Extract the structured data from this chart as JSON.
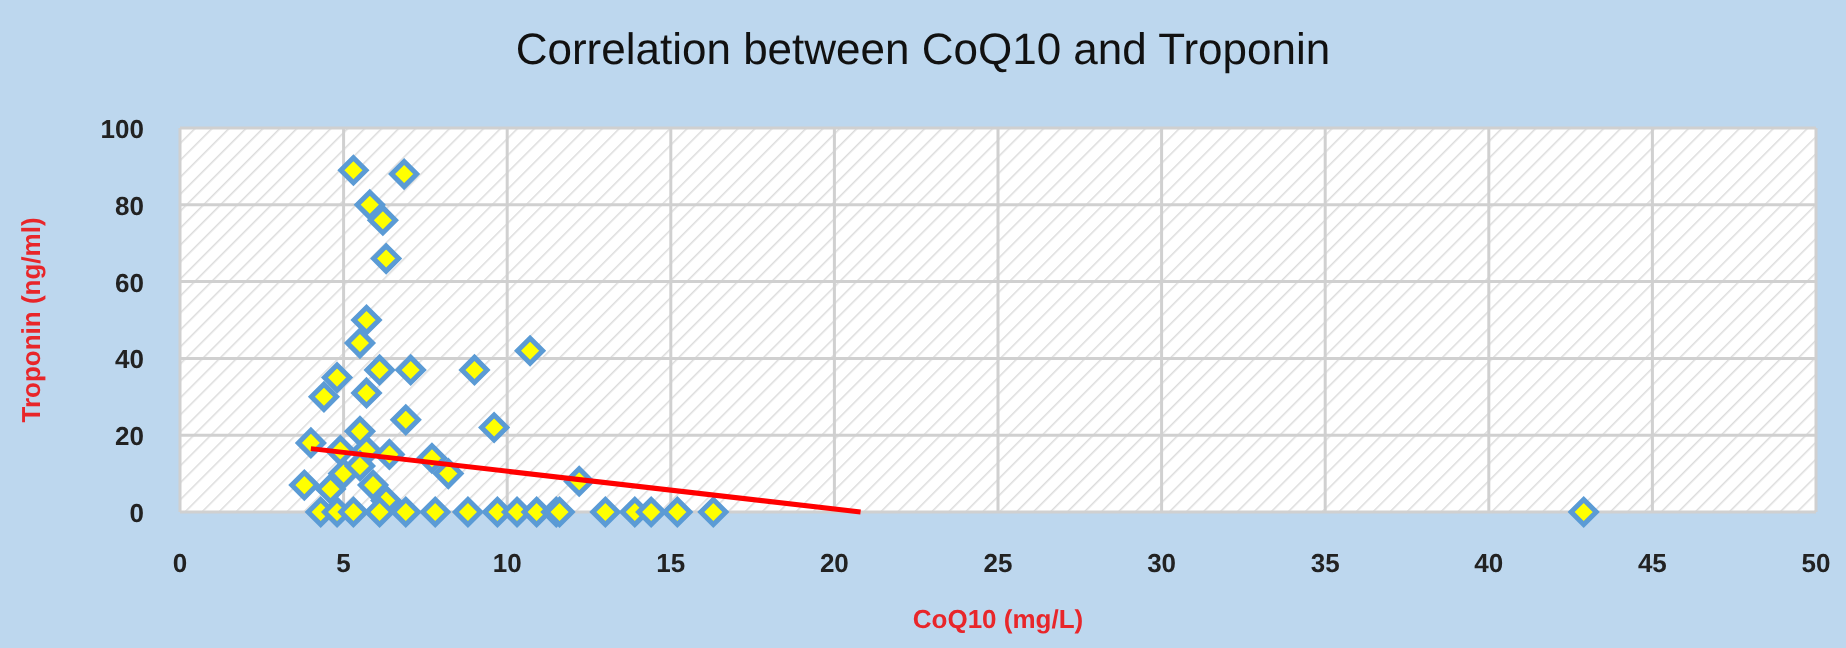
{
  "chart_data": {
    "type": "scatter",
    "title": "Correlation between CoQ10 and Troponin",
    "xlabel": "CoQ10 (mg/L)",
    "ylabel": "Troponin (ng/ml)",
    "xlim": [
      0,
      50
    ],
    "xticks": [
      0,
      5,
      10,
      15,
      20,
      25,
      30,
      35,
      40,
      45,
      50
    ],
    "ylim": [
      0,
      100
    ],
    "yticks": [
      0,
      20,
      40,
      60,
      80,
      100
    ],
    "grid": true,
    "series": [
      {
        "marker": "diamond",
        "color": "#ffff00",
        "x": [
          5.3,
          6.85,
          5.8,
          6.2,
          6.3,
          5.7,
          5.5,
          6.1,
          7.05,
          9.0,
          10.7,
          4.8,
          4.4,
          5.7,
          6.9,
          9.6,
          4.0,
          4.9,
          5.5,
          5.7,
          6.4,
          7.7,
          8.2,
          3.8,
          4.6,
          5.0,
          5.9,
          5.5,
          12.2,
          6.3,
          4.3,
          4.8,
          5.3,
          6.1,
          6.9,
          7.8,
          8.8,
          9.7,
          10.3,
          10.9,
          11.5,
          11.6,
          13.0,
          13.9,
          14.4,
          15.2,
          16.3,
          42.9
        ],
        "values": [
          89,
          88,
          80,
          76,
          66,
          50,
          44,
          37,
          37,
          37,
          42,
          35,
          30,
          31,
          24,
          22,
          18,
          16,
          21,
          16,
          15,
          14,
          10,
          7,
          6,
          10,
          7,
          12,
          8,
          3,
          0,
          0,
          0,
          0,
          0,
          0,
          0,
          0,
          0,
          0,
          0,
          0,
          0,
          0,
          0,
          0,
          0,
          0
        ]
      },
      {
        "type": "line",
        "color": "#ff0000",
        "x": [
          4.0,
          20.8
        ],
        "values": [
          16.5,
          0
        ]
      }
    ]
  }
}
